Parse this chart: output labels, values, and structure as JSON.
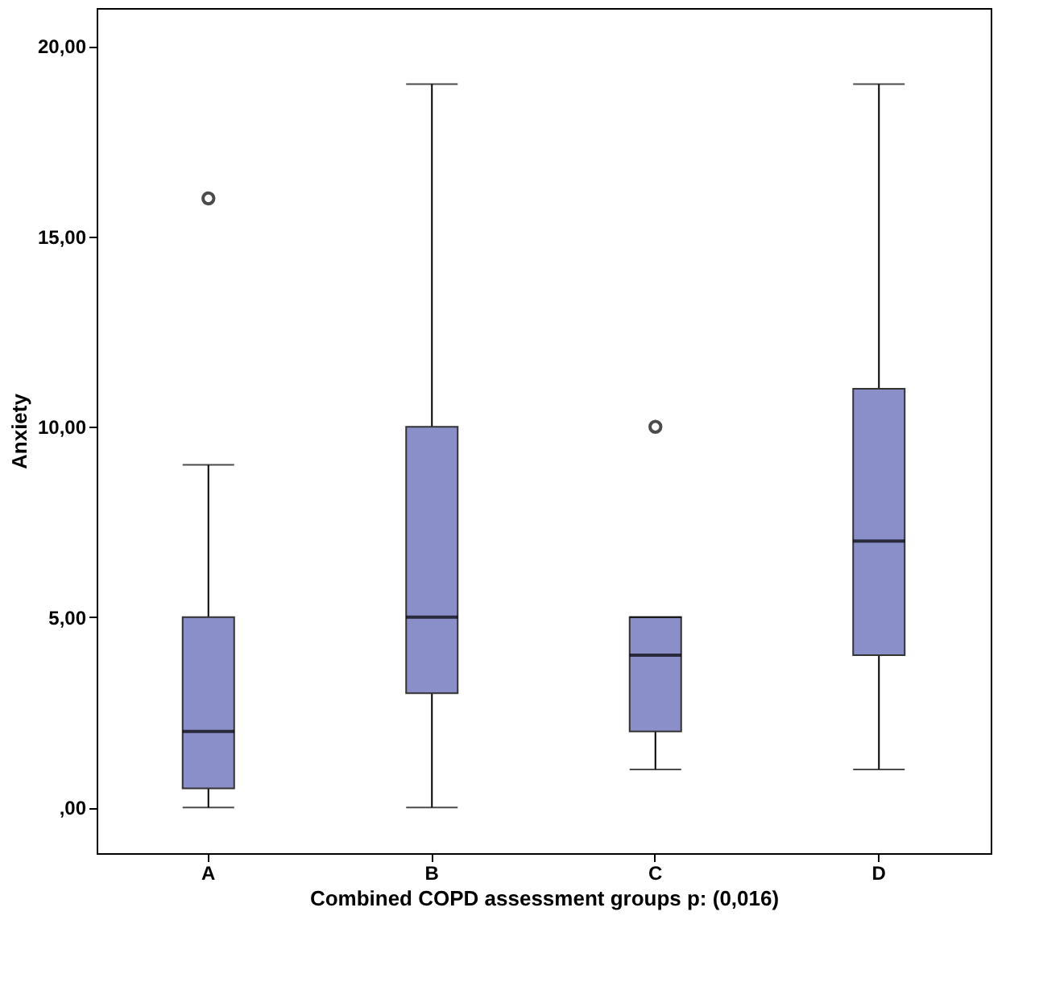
{
  "chart_data": {
    "type": "box",
    "xlabel": "Combined COPD assessment groups p: (0,016)",
    "ylabel": "Anxiety",
    "categories": [
      "A",
      "B",
      "C",
      "D"
    ],
    "boxes": [
      {
        "low": 0,
        "q1": 0.5,
        "median": 2,
        "q3": 5,
        "high": 9,
        "outliers": [
          16
        ]
      },
      {
        "low": 0,
        "q1": 3,
        "median": 5,
        "q3": 10,
        "high": 19
      },
      {
        "low": 1,
        "q1": 2,
        "median": 4,
        "q3": 5,
        "high": 5,
        "outliers": [
          10
        ]
      },
      {
        "low": 1,
        "q1": 4,
        "median": 7,
        "q3": 11,
        "high": 19
      }
    ],
    "color": "#8b8fc9",
    "ylim": [
      -1.2,
      21
    ],
    "yticks": [
      {
        "value": 0,
        "label": ",00"
      },
      {
        "value": 5,
        "label": "5,00"
      },
      {
        "value": 10,
        "label": "10,00"
      },
      {
        "value": 15,
        "label": "15,00"
      },
      {
        "value": 20,
        "label": "20,00"
      }
    ],
    "grid": false
  }
}
